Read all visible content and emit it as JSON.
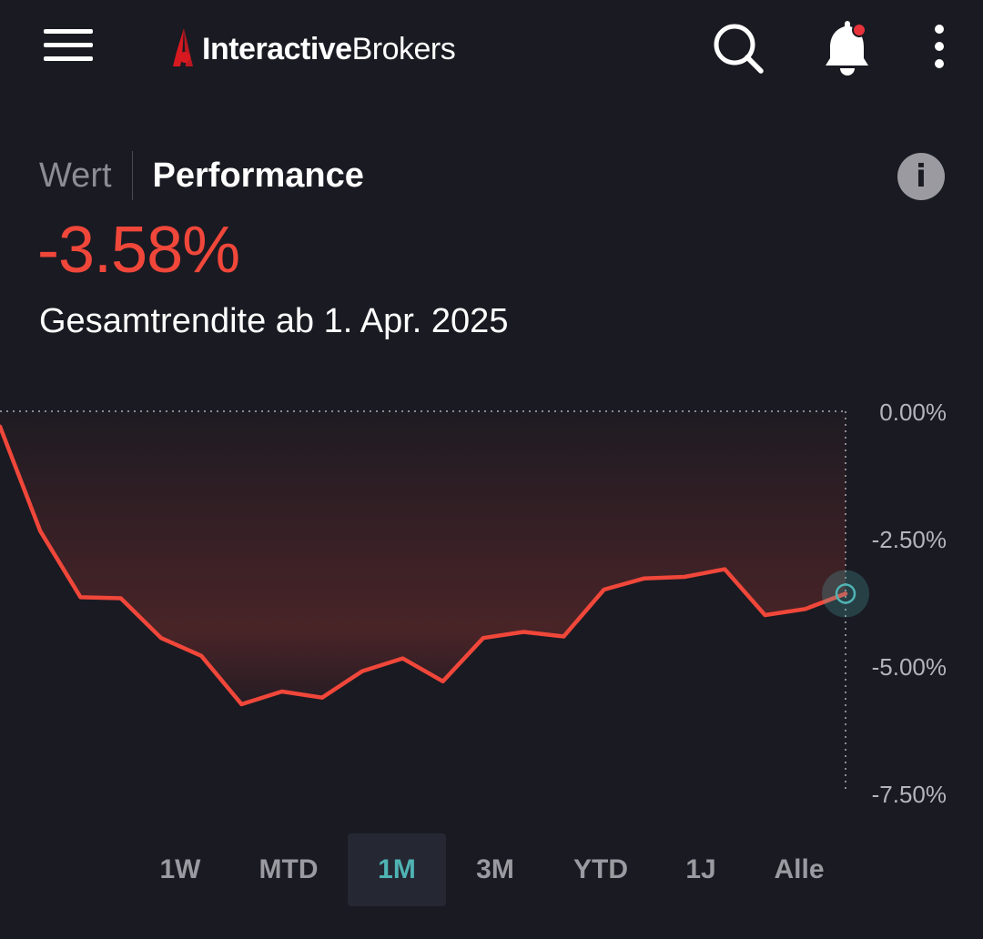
{
  "header": {
    "logo_bold": "Interactive",
    "logo_regular": "Brokers",
    "brand_color": "#d71920",
    "notification_dot_color": "#e8323a",
    "icons": [
      "menu-icon",
      "search-icon",
      "bell-icon",
      "more-vertical-icon"
    ]
  },
  "tabs": [
    {
      "label": "Wert",
      "active": false
    },
    {
      "label": "Performance",
      "active": true
    }
  ],
  "info_label": "i",
  "performance": {
    "value": "-3.58%",
    "subtitle": "Gesamtrendite ab 1. Apr. 2025",
    "color": "#f0473a"
  },
  "chart_data": {
    "type": "area",
    "series": [
      {
        "values": [
          -0.3,
          -2.35,
          -3.65,
          -3.67,
          -4.45,
          -4.8,
          -5.75,
          -5.5,
          -5.62,
          -5.1,
          -4.85,
          -5.3,
          -4.45,
          -4.33,
          -4.42,
          -3.5,
          -3.28,
          -3.25,
          -3.1,
          -4.0,
          -3.88,
          -3.58
        ]
      }
    ],
    "yticks": [
      "0.00%",
      "-2.50%",
      "-5.00%",
      "-7.50%"
    ],
    "ylim": [
      -7.5,
      0.0
    ],
    "line_color": "#f0473a",
    "marker_color": "#4fb3b3",
    "reference_line": 0.0,
    "grid": false
  },
  "ranges": [
    {
      "label": "1W",
      "active": false
    },
    {
      "label": "MTD",
      "active": false
    },
    {
      "label": "1M",
      "active": true
    },
    {
      "label": "3M",
      "active": false
    },
    {
      "label": "YTD",
      "active": false
    },
    {
      "label": "1J",
      "active": false
    },
    {
      "label": "Alle",
      "active": false
    }
  ]
}
